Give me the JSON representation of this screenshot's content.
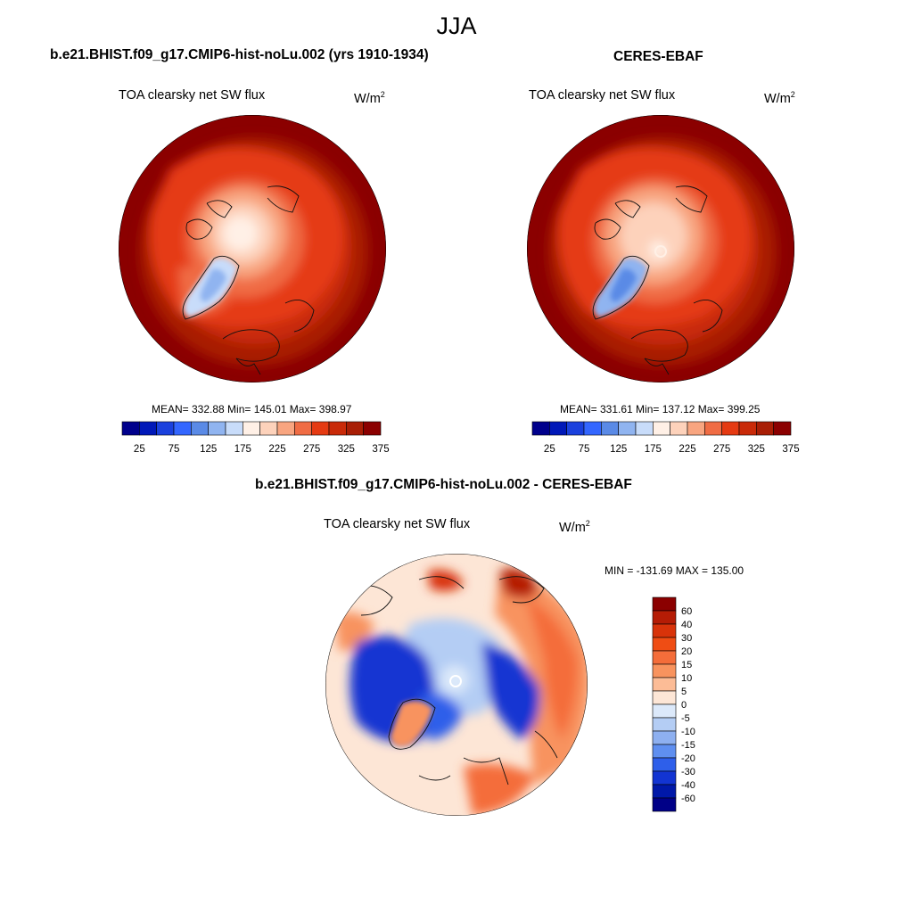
{
  "figure": {
    "title": "JJA"
  },
  "panels": [
    {
      "title": "b.e21.BHIST.f09_g17.CMIP6-hist-noLu.002 (yrs 1910-1934)",
      "variable": "TOA clearsky net SW flux",
      "units_base": "W/m",
      "units_exp": "2",
      "stats": "MEAN= 332.88  Min= 145.01  Max= 398.97"
    },
    {
      "title": "CERES-EBAF",
      "variable": "TOA clearsky net SW flux",
      "units_base": "W/m",
      "units_exp": "2",
      "stats": "MEAN= 331.61  Min= 137.12  Max= 399.25"
    },
    {
      "title": "b.e21.BHIST.f09_g17.CMIP6-hist-noLu.002 - CERES-EBAF",
      "variable": "TOA clearsky net SW flux",
      "units_base": "W/m",
      "units_exp": "2",
      "stats": "MIN = -131.69 MAX = 135.00"
    }
  ],
  "colorbars": {
    "abs": {
      "colors": [
        "#00008c",
        "#0018b8",
        "#1a40dd",
        "#3366ff",
        "#5a8ae6",
        "#90b4f0",
        "#c8dcfa",
        "#fff0e6",
        "#fdd2bb",
        "#f8a580",
        "#f06c44",
        "#e53a12",
        "#c92a08",
        "#a81e05",
        "#8b0000"
      ],
      "tick_labels": [
        "25",
        "75",
        "125",
        "175",
        "225",
        "275",
        "325",
        "375"
      ]
    },
    "diff": {
      "colors": [
        "#8b0000",
        "#b51c05",
        "#d8330a",
        "#ef4d14",
        "#f46d3a",
        "#f8935e",
        "#fcbc96",
        "#fde6d6",
        "#dce9fa",
        "#b4cdf4",
        "#8eb0f0",
        "#5f8ff0",
        "#2e5fea",
        "#1234d2",
        "#0018a8",
        "#000087"
      ],
      "labels": [
        "60",
        "40",
        "30",
        "20",
        "15",
        "10",
        "5",
        "0",
        "-5",
        "-10",
        "-15",
        "-20",
        "-30",
        "-40",
        "-60"
      ]
    }
  }
}
